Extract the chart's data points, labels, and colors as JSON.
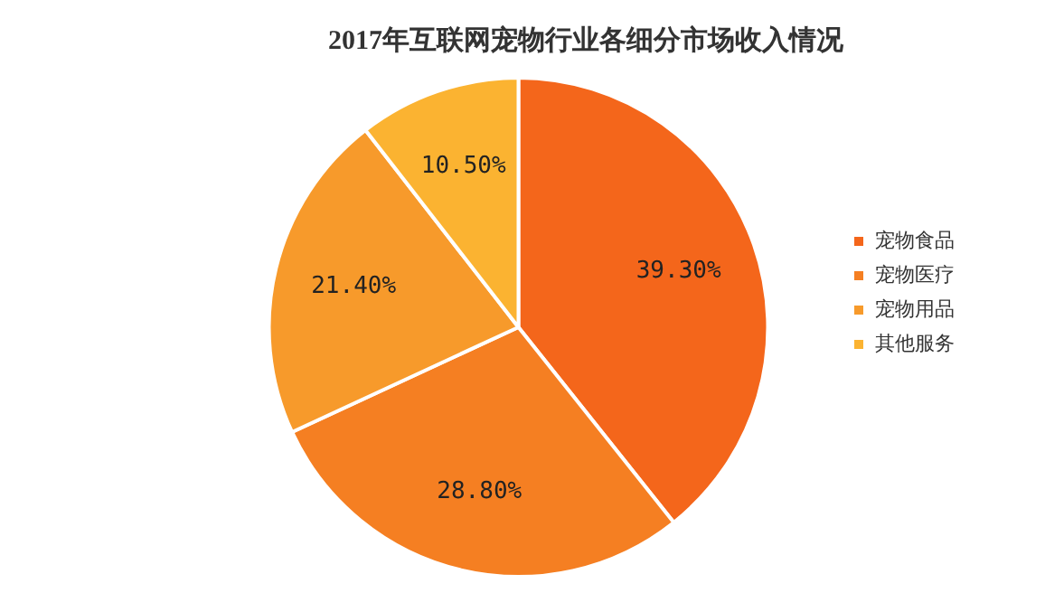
{
  "chart_data": {
    "type": "pie",
    "title": "2017年互联网宠物行业各细分市场收入情况",
    "categories": [
      "宠物食品",
      "宠物医疗",
      "宠物用品",
      "其他服务"
    ],
    "values": [
      39.3,
      28.8,
      21.4,
      10.5
    ],
    "value_labels": [
      "39.30%",
      "28.80%",
      "21.40%",
      "10.50%"
    ],
    "colors": [
      "#f4661b",
      "#f57f22",
      "#f79a2b",
      "#fbb331"
    ],
    "legend": "right"
  }
}
